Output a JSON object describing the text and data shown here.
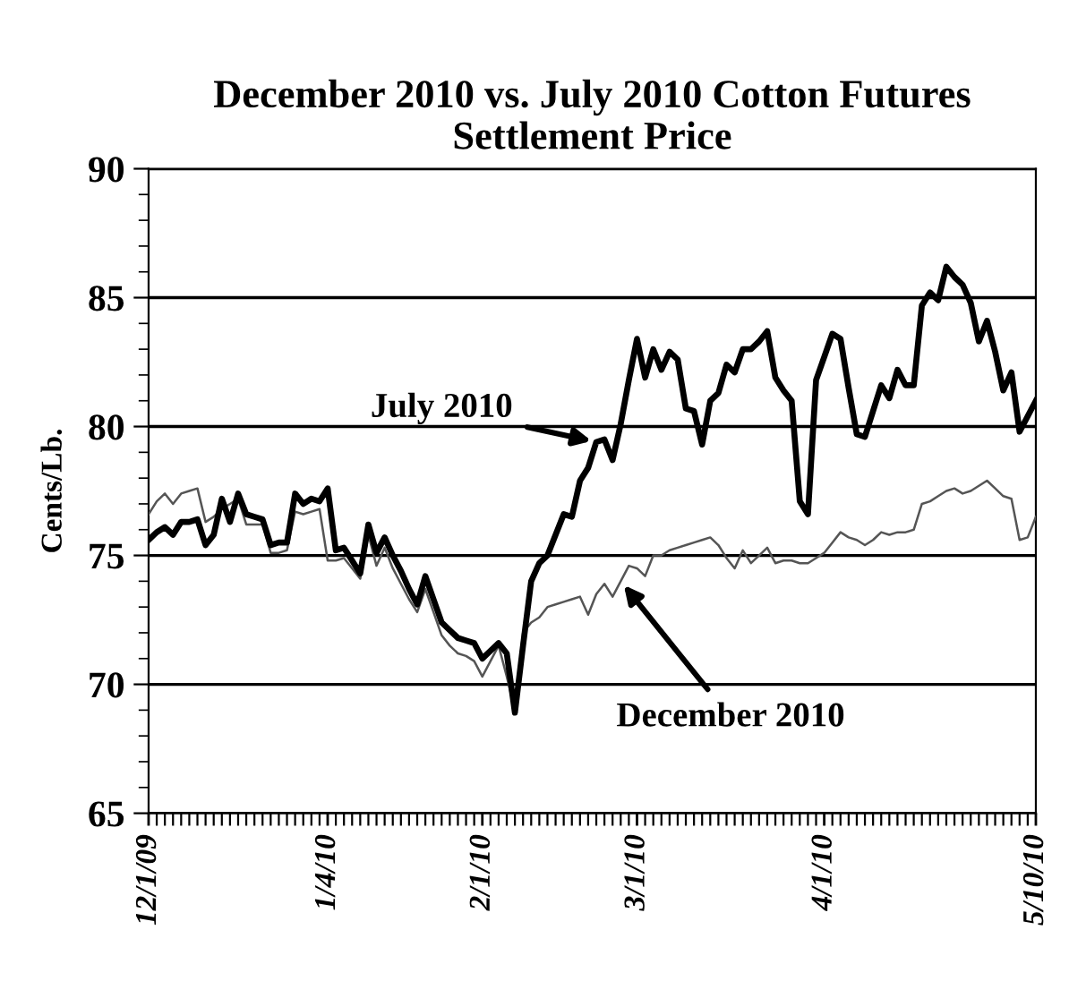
{
  "chart_data": {
    "type": "line",
    "title": "December 2010 vs. July 2010 Cotton Futures\nSettlement Price",
    "ylabel": "Cents/Lb.",
    "categories": [
      "12/1/09",
      null,
      null,
      null,
      null,
      null,
      null,
      null,
      null,
      null,
      null,
      null,
      null,
      null,
      null,
      null,
      null,
      null,
      null,
      null,
      null,
      null,
      "1/4/10",
      null,
      null,
      null,
      null,
      null,
      null,
      null,
      null,
      null,
      null,
      null,
      null,
      null,
      null,
      null,
      null,
      null,
      null,
      "2/1/10",
      null,
      null,
      null,
      null,
      null,
      null,
      null,
      null,
      null,
      null,
      null,
      null,
      null,
      null,
      null,
      null,
      null,
      null,
      "3/1/10",
      null,
      null,
      null,
      null,
      null,
      null,
      null,
      null,
      null,
      null,
      null,
      null,
      null,
      null,
      null,
      null,
      null,
      null,
      null,
      null,
      null,
      null,
      "4/1/10",
      null,
      null,
      null,
      null,
      null,
      null,
      null,
      null,
      null,
      null,
      null,
      null,
      null,
      null,
      null,
      null,
      null,
      null,
      null,
      null,
      null,
      null,
      null,
      null,
      null,
      "5/10/10"
    ],
    "ylim": [
      65,
      90
    ],
    "yticks": [
      65,
      70,
      75,
      80,
      85,
      90
    ],
    "grid": "y",
    "marker": "none",
    "series": [
      {
        "name": "July 2010",
        "color": "#000000",
        "line_style": "solid",
        "values": [
          75.6,
          75.9,
          76.1,
          75.8,
          76.3,
          76.3,
          76.4,
          75.4,
          75.8,
          77.2,
          76.3,
          77.4,
          76.6,
          76.5,
          76.4,
          75.4,
          75.5,
          75.5,
          77.4,
          77.0,
          77.2,
          77.1,
          77.6,
          75.2,
          75.3,
          74.8,
          74.3,
          76.2,
          75.1,
          75.7,
          75.0,
          74.4,
          73.7,
          73.1,
          74.2,
          73.3,
          72.4,
          72.1,
          71.8,
          71.7,
          71.6,
          71.0,
          71.3,
          71.6,
          71.2,
          68.9,
          71.5,
          74.0,
          74.7,
          75.0,
          75.8,
          76.6,
          76.5,
          77.9,
          78.4,
          79.4,
          79.5,
          78.7,
          80.1,
          81.8,
          83.4,
          81.9,
          83.0,
          82.2,
          82.9,
          82.6,
          80.7,
          80.6,
          79.3,
          81.0,
          81.3,
          82.4,
          82.1,
          83.0,
          83.0,
          83.3,
          83.7,
          81.9,
          81.4,
          81.0,
          77.1,
          76.6,
          81.8,
          82.7,
          83.6,
          83.4,
          81.5,
          79.7,
          79.6,
          80.6,
          81.6,
          81.1,
          82.2,
          81.6,
          81.6,
          84.7,
          85.2,
          84.9,
          86.2,
          85.8,
          85.5,
          84.8,
          83.3,
          84.1,
          82.9,
          81.4,
          82.1,
          79.8,
          80.4,
          81.0
        ]
      },
      {
        "name": "December 2010",
        "color": "#555555",
        "line_style": "solid",
        "values": [
          76.6,
          77.1,
          77.4,
          77.0,
          77.4,
          77.5,
          77.6,
          76.3,
          76.5,
          76.8,
          77.0,
          77.2,
          76.2,
          76.2,
          76.2,
          75.1,
          75.1,
          75.2,
          76.7,
          76.6,
          76.7,
          76.8,
          74.8,
          74.8,
          74.9,
          74.5,
          74.1,
          75.8,
          74.6,
          75.3,
          74.5,
          73.9,
          73.3,
          72.8,
          73.7,
          72.8,
          71.9,
          71.5,
          71.2,
          71.1,
          70.9,
          70.3,
          70.9,
          71.5,
          70.3,
          69.0,
          72.0,
          72.4,
          72.6,
          73.0,
          73.1,
          73.2,
          73.3,
          73.4,
          72.7,
          73.5,
          73.9,
          73.4,
          74.0,
          74.6,
          74.5,
          74.2,
          75.0,
          75.0,
          75.2,
          75.3,
          75.4,
          75.5,
          75.6,
          75.7,
          75.4,
          74.9,
          74.5,
          75.2,
          74.7,
          75.0,
          75.3,
          74.7,
          74.8,
          74.8,
          74.7,
          74.7,
          74.9,
          75.1,
          75.5,
          75.9,
          75.7,
          75.6,
          75.4,
          75.6,
          75.9,
          75.8,
          75.9,
          75.9,
          76.0,
          77.0,
          77.1,
          77.3,
          77.5,
          77.6,
          77.4,
          77.5,
          77.7,
          77.9,
          77.6,
          77.3,
          77.2,
          75.6,
          75.7,
          76.5
        ]
      }
    ]
  }
}
